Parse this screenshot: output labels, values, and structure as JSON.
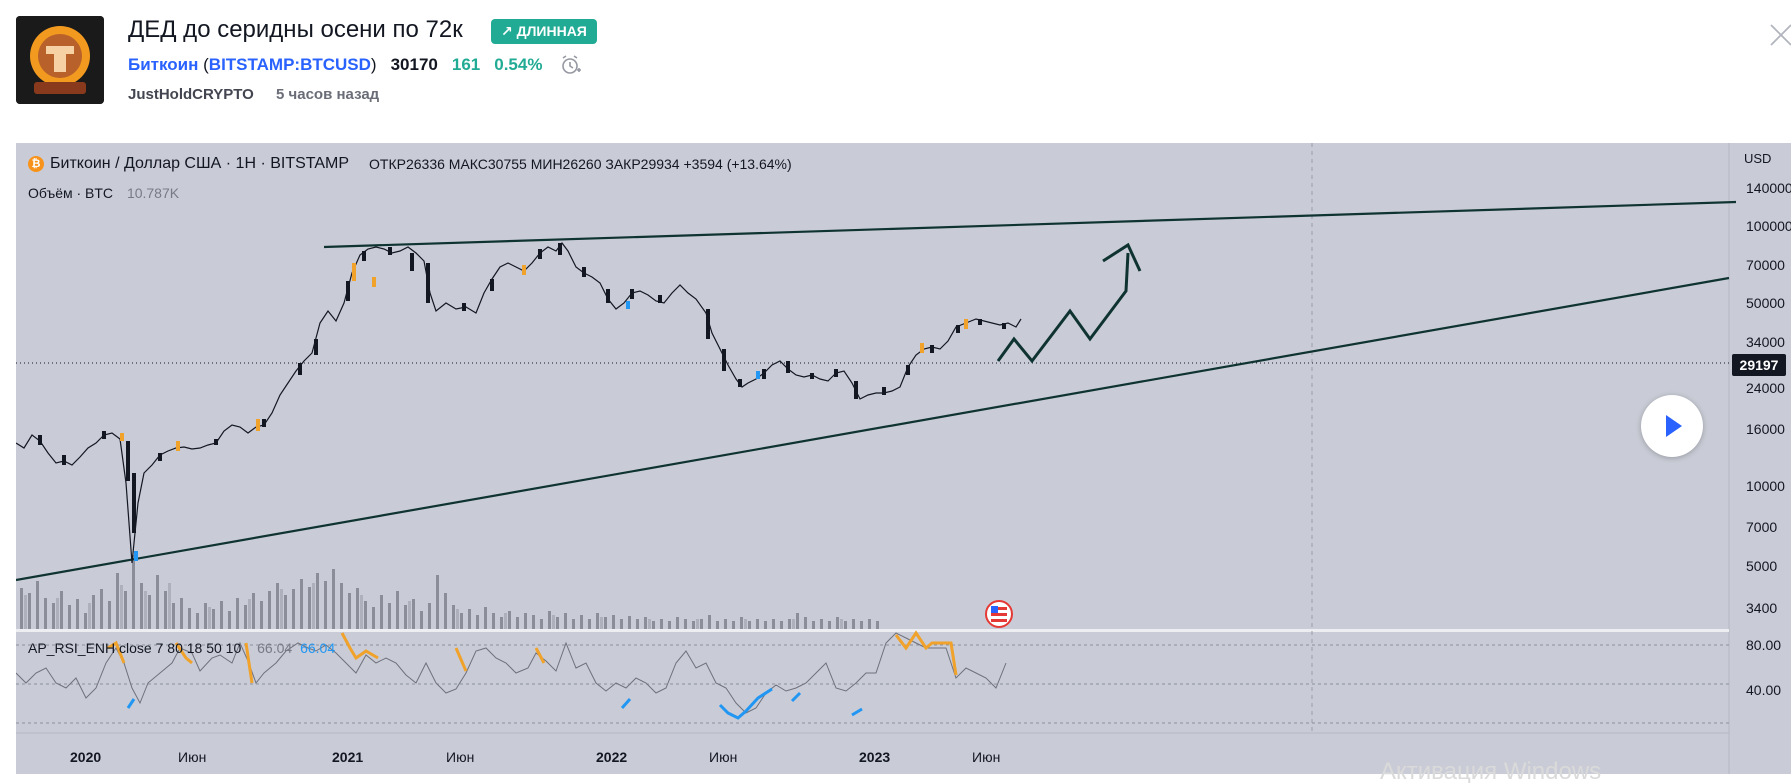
{
  "idea": {
    "title": "ДЕД до серидны осени по 72к",
    "badge": "↗ ДЛИННАЯ",
    "symbol_name": "Биткоин",
    "symbol_ticker": "BITSTAMP:BTCUSD",
    "price": "30170",
    "change": "161",
    "change_pct": "0.54%",
    "author": "JustHoldCRYPTO",
    "time_ago": "5 часов назад"
  },
  "chart": {
    "legend_title": "Биткоин / Доллар США · 1H · BITSTAMP",
    "ohlc": "ОТКР26336 МАКС30755 МИН26260 ЗАКР29934 +3594 (+13.64%)",
    "volume_label": "Объём · BTC",
    "volume_value": "10.787K",
    "rsi_label": "AP_RSI_ENH close 7 80 18 50 10",
    "rsi_value_1": "66.04",
    "rsi_value_2": "66.04",
    "currency": "USD",
    "last_price_tag": "29197",
    "watermark": "Активация Windows"
  },
  "chart_data": {
    "type": "candlestick",
    "title": "Биткоин / Доллар США · 1H · BITSTAMP",
    "y_scale": "log",
    "y_ticks": [
      140000,
      100000,
      70000,
      50000,
      34000,
      24000,
      16000,
      10000,
      7000,
      5000,
      3400
    ],
    "x_ticks": [
      "2020",
      "Июн",
      "2021",
      "Июн",
      "2022",
      "Июн",
      "2023",
      "Июн"
    ],
    "rsi_ticks": [
      "80.00",
      "40.00"
    ],
    "price_path_approx": [
      {
        "x": "2020-01",
        "y": 8500
      },
      {
        "x": "2020-03",
        "y": 5000
      },
      {
        "x": "2020-08",
        "y": 11500
      },
      {
        "x": "2020-12",
        "y": 28000
      },
      {
        "x": "2021-04",
        "y": 62000
      },
      {
        "x": "2021-07",
        "y": 32000
      },
      {
        "x": "2021-11",
        "y": 67000
      },
      {
        "x": "2022-01",
        "y": 38000
      },
      {
        "x": "2022-04",
        "y": 46000
      },
      {
        "x": "2022-06",
        "y": 19500
      },
      {
        "x": "2022-11",
        "y": 16000
      },
      {
        "x": "2023-04",
        "y": 30000
      },
      {
        "x": "2023-06",
        "y": 29934
      }
    ],
    "annotations": [
      "resistance trendline",
      "support trendline",
      "projected zig-zag arrow to ~72000"
    ],
    "legend": "top-left",
    "grid": false
  }
}
